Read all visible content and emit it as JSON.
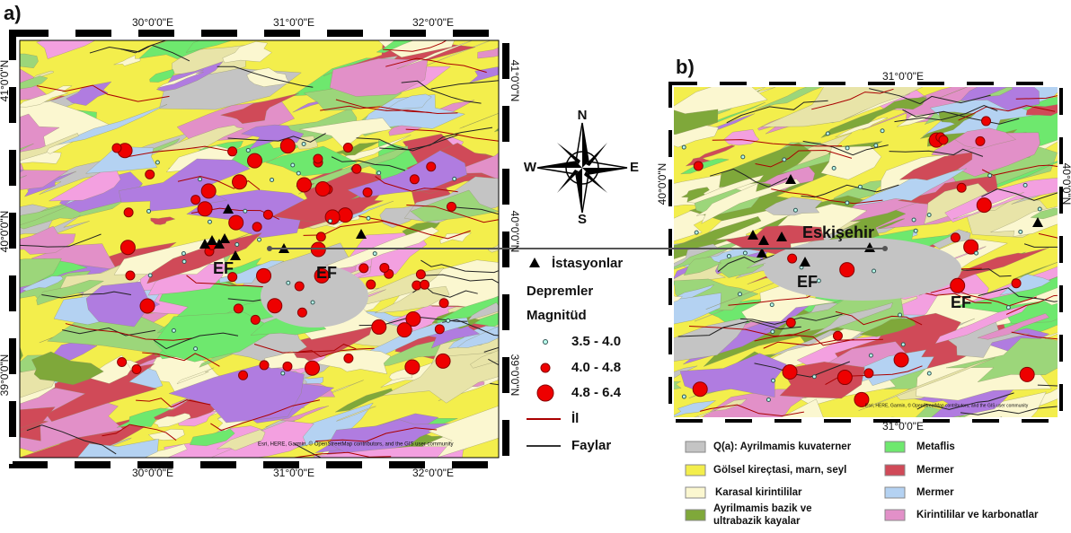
{
  "panel_a": {
    "label": "a)",
    "top_ticks": [
      "30°0'0\"E",
      "31°0'0\"E",
      "32°0'0\"E"
    ],
    "bottom_ticks": [
      "30°0'0\"E",
      "31°0'0\"E",
      "32°0'0\"E"
    ],
    "left_ticks": [
      "41°0'0\"N",
      "40°0'0\"N",
      "39°0'0\"N"
    ],
    "right_ticks": [
      "41°0'0\"N",
      "40°0'0\"N",
      "39°0'0\"N"
    ],
    "annotations": [
      "EF",
      "EF"
    ]
  },
  "panel_b": {
    "label": "b)",
    "top_ticks": [
      "31°0'0\"E"
    ],
    "bottom_ticks": [
      "31°0'0\"E"
    ],
    "left_ticks": [
      "40°0'0\"N"
    ],
    "right_ticks": [
      "40°0'0\"N"
    ],
    "annotations": [
      "Eskişehir",
      "EF",
      "EF"
    ]
  },
  "compass": {
    "n": "N",
    "s": "S",
    "e": "E",
    "w": "W"
  },
  "legend": {
    "stations": "İstasyonlar",
    "earthquakes": "Depremler",
    "magnitude": "Magnitüd",
    "classes": [
      "3.5 - 4.0",
      "4.0 - 4.8",
      "4.8 - 6.4"
    ],
    "province": "İl",
    "faults": "Faylar"
  },
  "geology_legend": [
    "Q(a): Ayrilmamis kuvaterner",
    "Gölsel kireçtasi, marn, seyl",
    "Karasal kirintililar",
    "Ayrilmamis bazik ve ultrabazik kayalar",
    "Metaflis",
    "Mermer",
    "Mermer",
    "Kirintililar ve karbonatlar"
  ],
  "attribution": "Esri, HERE, Garmin, © OpenStreetMap contributors, and the GIS user community"
}
